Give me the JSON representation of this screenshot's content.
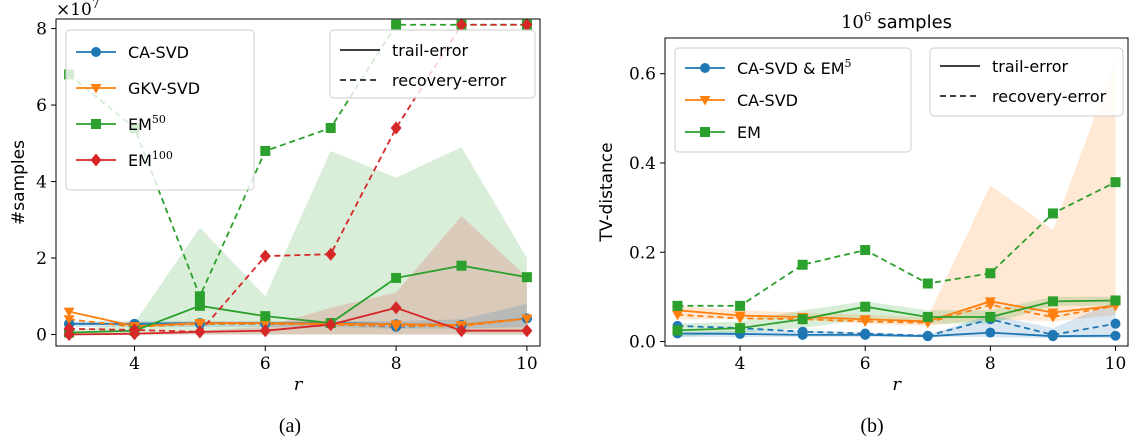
{
  "colors": {
    "blue": "#1f77b4",
    "orange": "#ff7f0e",
    "green": "#2ca02c",
    "red": "#d62728"
  },
  "chart_data": [
    {
      "type": "line",
      "caption": "(a)",
      "title": "",
      "scale_label": "×10",
      "scale_exp": "7",
      "xlabel": "r",
      "ylabel": "#samples",
      "xlim": [
        2.8,
        10.2
      ],
      "ylim": [
        -0.3,
        8.25
      ],
      "xticks": [
        4,
        6,
        8,
        10
      ],
      "yticks": [
        0,
        2,
        4,
        6,
        8
      ],
      "x": [
        3,
        4,
        5,
        6,
        7,
        8,
        9,
        10
      ],
      "grid": false,
      "legend_methods": [
        {
          "label": "CA-SVD",
          "sup": "",
          "color": "blue",
          "marker": "circle"
        },
        {
          "label": "GKV-SVD",
          "sup": "",
          "color": "orange",
          "marker": "triangle-down"
        },
        {
          "label": "EM",
          "sup": "50",
          "color": "green",
          "marker": "square"
        },
        {
          "label": "EM",
          "sup": "100",
          "color": "red",
          "marker": "diamond"
        }
      ],
      "legend_styles": [
        {
          "label": "trail-error",
          "dash": false
        },
        {
          "label": "recovery-error",
          "dash": true
        }
      ],
      "series": [
        {
          "color": "blue",
          "marker": "circle",
          "style": "solid",
          "values": [
            0.28,
            0.28,
            0.3,
            0.3,
            0.3,
            0.27,
            0.25,
            0.42
          ]
        },
        {
          "color": "blue",
          "marker": "circle",
          "style": "dashed",
          "values": [
            0.28,
            0.28,
            0.28,
            0.28,
            0.28,
            0.2,
            0.25,
            0.42
          ]
        },
        {
          "color": "orange",
          "marker": "triangle-down",
          "style": "solid",
          "values": [
            0.6,
            0.22,
            0.3,
            0.3,
            0.28,
            0.27,
            0.25,
            0.42
          ]
        },
        {
          "color": "orange",
          "marker": "triangle-down",
          "style": "dashed",
          "values": [
            0.4,
            0.2,
            0.28,
            0.28,
            0.26,
            0.22,
            0.22,
            0.42
          ]
        },
        {
          "color": "green",
          "marker": "square",
          "style": "solid",
          "values": [
            0.05,
            0.1,
            0.75,
            0.48,
            0.3,
            1.48,
            1.8,
            1.5
          ]
        },
        {
          "color": "green",
          "marker": "square",
          "style": "dashed",
          "values": [
            6.8,
            5.4,
            1.0,
            4.8,
            5.4,
            8.1,
            8.1,
            8.1
          ]
        },
        {
          "color": "red",
          "marker": "diamond",
          "style": "solid",
          "values": [
            0.0,
            0.02,
            0.07,
            0.1,
            0.26,
            0.7,
            0.1,
            0.1
          ]
        },
        {
          "color": "red",
          "marker": "diamond",
          "style": "dashed",
          "values": [
            0.15,
            0.12,
            0.07,
            2.05,
            2.1,
            5.4,
            8.1,
            8.1
          ]
        }
      ],
      "bands": [
        {
          "color": "green",
          "lower": [
            0.0,
            0.0,
            0.0,
            0.0,
            0.0,
            0.0,
            0.0,
            0.0
          ],
          "upper": [
            0.1,
            0.3,
            2.8,
            1.0,
            4.8,
            4.1,
            4.9,
            2.0
          ]
        },
        {
          "color": "red",
          "lower": [
            0.0,
            0.0,
            0.0,
            0.0,
            0.0,
            0.0,
            0.0,
            0.0
          ],
          "upper": [
            0.0,
            0.05,
            0.1,
            0.2,
            0.7,
            1.1,
            3.1,
            1.5
          ]
        },
        {
          "color": "blue",
          "lower": [
            0.2,
            0.2,
            0.2,
            0.2,
            0.2,
            0.15,
            0.15,
            0.2
          ],
          "upper": [
            0.35,
            0.35,
            0.35,
            0.35,
            0.35,
            0.35,
            0.4,
            0.8
          ]
        }
      ]
    },
    {
      "type": "line",
      "caption": "(b)",
      "title": " samples",
      "title_base": "10",
      "title_exp": "6",
      "xlabel": "r",
      "ylabel": "TV-distance",
      "xlim": [
        2.8,
        10.2
      ],
      "ylim": [
        -0.01,
        0.68
      ],
      "xticks": [
        4,
        6,
        8,
        10
      ],
      "yticks": [
        0.0,
        0.2,
        0.4,
        0.6
      ],
      "x": [
        3,
        4,
        5,
        6,
        7,
        8,
        9,
        10
      ],
      "grid": false,
      "legend_methods": [
        {
          "label": "CA-SVD & EM",
          "sup": "5",
          "color": "blue",
          "marker": "circle"
        },
        {
          "label": "CA-SVD",
          "sup": "",
          "color": "orange",
          "marker": "triangle-down"
        },
        {
          "label": "EM",
          "sup": "",
          "color": "green",
          "marker": "square"
        }
      ],
      "legend_styles": [
        {
          "label": "trail-error",
          "dash": false
        },
        {
          "label": "recovery-error",
          "dash": true
        }
      ],
      "series": [
        {
          "color": "blue",
          "marker": "circle",
          "style": "solid",
          "values": [
            0.018,
            0.017,
            0.015,
            0.015,
            0.012,
            0.02,
            0.012,
            0.013
          ]
        },
        {
          "color": "blue",
          "marker": "circle",
          "style": "dashed",
          "values": [
            0.035,
            0.03,
            0.022,
            0.018,
            0.013,
            0.05,
            0.015,
            0.04
          ]
        },
        {
          "color": "orange",
          "marker": "triangle-down",
          "style": "solid",
          "values": [
            0.07,
            0.058,
            0.055,
            0.05,
            0.045,
            0.09,
            0.065,
            0.08
          ]
        },
        {
          "color": "orange",
          "marker": "triangle-down",
          "style": "dashed",
          "values": [
            0.06,
            0.052,
            0.05,
            0.045,
            0.042,
            0.082,
            0.055,
            0.08
          ]
        },
        {
          "color": "green",
          "marker": "square",
          "style": "solid",
          "values": [
            0.025,
            0.03,
            0.05,
            0.078,
            0.055,
            0.055,
            0.09,
            0.092
          ]
        },
        {
          "color": "green",
          "marker": "square",
          "style": "dashed",
          "values": [
            0.08,
            0.08,
            0.172,
            0.205,
            0.13,
            0.153,
            0.287,
            0.357
          ]
        }
      ],
      "bands": [
        {
          "color": "orange",
          "lower": [
            0.05,
            0.05,
            0.05,
            0.04,
            0.035,
            0.05,
            0.045,
            0.06
          ],
          "upper": [
            0.08,
            0.07,
            0.065,
            0.06,
            0.055,
            0.35,
            0.25,
            0.63
          ]
        },
        {
          "color": "green",
          "lower": [
            0.01,
            0.02,
            0.03,
            0.05,
            0.04,
            0.04,
            0.08,
            0.08
          ],
          "upper": [
            0.04,
            0.045,
            0.07,
            0.09,
            0.07,
            0.07,
            0.1,
            0.1
          ]
        },
        {
          "color": "blue",
          "lower": [
            0.01,
            0.01,
            0.01,
            0.01,
            0.01,
            0.01,
            0.008,
            0.008
          ],
          "upper": [
            0.02,
            0.025,
            0.025,
            0.02,
            0.015,
            0.06,
            0.03,
            0.09
          ]
        }
      ]
    }
  ]
}
